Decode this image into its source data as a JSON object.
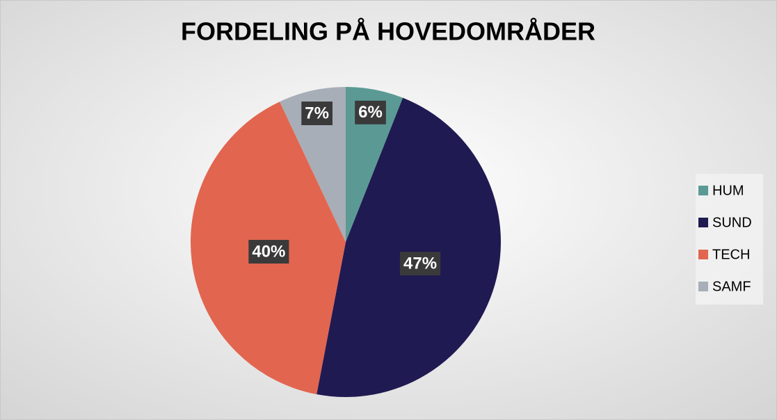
{
  "chart_data": {
    "type": "pie",
    "title": "FORDELING PÅ HOVEDOMRÅDER",
    "categories": [
      "HUM",
      "SUND",
      "TECH",
      "SAMF"
    ],
    "values": [
      6,
      47,
      40,
      7
    ],
    "value_labels": [
      "6%",
      "47%",
      "40%",
      "7%"
    ],
    "colors": [
      "#5b9a94",
      "#201a52",
      "#e2654f",
      "#a7aeb8"
    ],
    "legend": "right"
  }
}
